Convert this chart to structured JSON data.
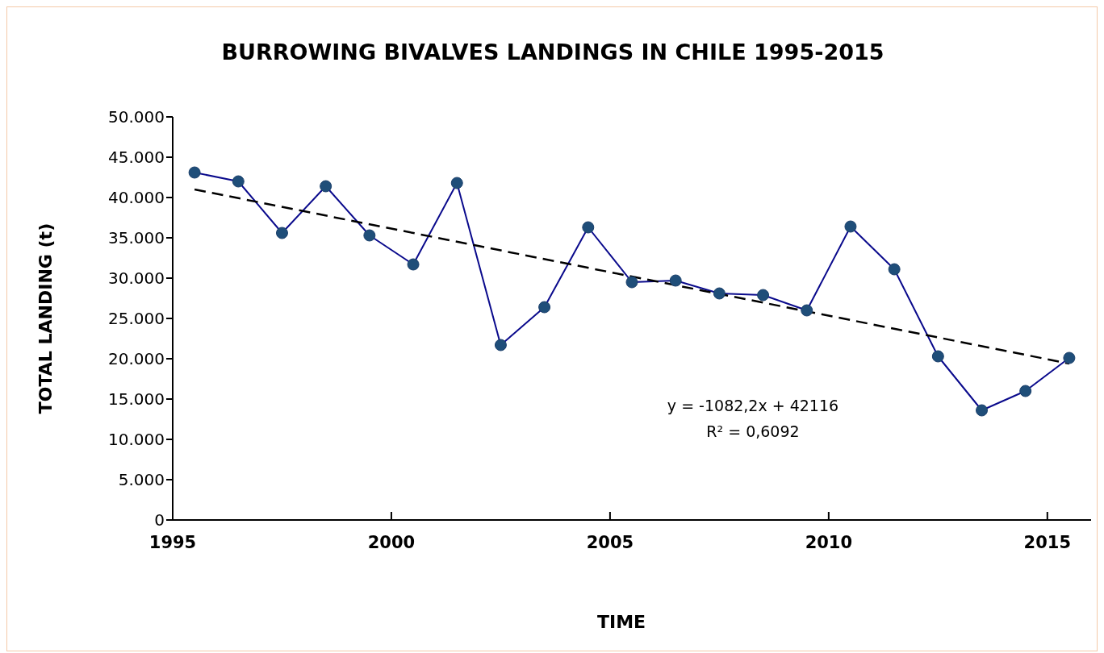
{
  "chart_data": {
    "type": "line",
    "title": "BURROWING BIVALVES LANDINGS IN CHILE  1995-2015",
    "xlabel": "TIME",
    "ylabel": "TOTAL LANDING (t)",
    "x": [
      1995.5,
      1996.5,
      1997.5,
      1998.5,
      1999.5,
      2000.5,
      2001.5,
      2002.5,
      2003.5,
      2004.5,
      2005.5,
      2006.5,
      2007.5,
      2008.5,
      2009.5,
      2010.5,
      2011.5,
      2012.5,
      2013.5,
      2014.5,
      2015.5
    ],
    "series": [
      {
        "color": "#0a0a8c",
        "values": [
          43100,
          42000,
          35600,
          41400,
          35300,
          31700,
          41800,
          21700,
          26400,
          36300,
          29500,
          29700,
          28100,
          27900,
          26000,
          36400,
          31100,
          20300,
          13600,
          16000,
          20100
        ]
      },
      {
        "type": "line",
        "x": [
          1995.5,
          2015.5
        ],
        "color": "#000000",
        "line_style": "dashed",
        "marker": "none",
        "values": [
          41000,
          19400
        ]
      }
    ],
    "marker": "circle",
    "line_style": "solid",
    "xlim": [
      1995,
      2016
    ],
    "xticks": [
      1995,
      2000,
      2005,
      2010,
      2015
    ],
    "ylim": [
      0,
      50000
    ],
    "yticks": [
      {
        "value": 0,
        "label": "0"
      },
      {
        "value": 5000,
        "label": "5.000"
      },
      {
        "value": 10000,
        "label": "10.000"
      },
      {
        "value": 15000,
        "label": "15.000"
      },
      {
        "value": 20000,
        "label": "20.000"
      },
      {
        "value": 25000,
        "label": "25.000"
      },
      {
        "value": 30000,
        "label": "30.000"
      },
      {
        "value": 35000,
        "label": "35.000"
      },
      {
        "value": 40000,
        "label": "40.000"
      },
      {
        "value": 45000,
        "label": "45.000"
      },
      {
        "value": 50000,
        "label": "50.000"
      }
    ],
    "annotations": [
      "y = -1082,2x + 42116",
      "R² = 0,6092"
    ]
  }
}
